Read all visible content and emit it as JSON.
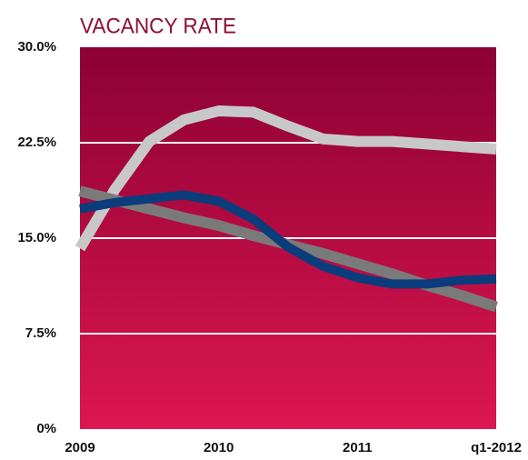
{
  "chart_data": {
    "type": "line",
    "title": "VACANCY RATE",
    "x": [
      2009,
      2009.25,
      2009.5,
      2009.75,
      2010,
      2010.25,
      2010.5,
      2010.75,
      2011,
      2011.25,
      2011.5,
      2011.75,
      2012
    ],
    "series": [
      {
        "color": "#c8c8c8",
        "values": [
          14.2,
          18.8,
          22.6,
          24.3,
          25.0,
          24.9,
          23.8,
          22.8,
          22.6,
          22.6,
          22.4,
          22.2,
          22.0
        ]
      },
      {
        "color": "#7a7a7a",
        "values": [
          18.7,
          18.0,
          17.3,
          16.6,
          16.0,
          15.2,
          14.5,
          13.8,
          13.0,
          12.2,
          11.3,
          10.5,
          9.6
        ]
      },
      {
        "color": "#0b3c7c",
        "values": [
          17.3,
          17.8,
          18.1,
          18.4,
          17.9,
          16.5,
          14.3,
          12.8,
          11.9,
          11.4,
          11.4,
          11.7,
          11.8
        ]
      }
    ],
    "xlim": [
      2009,
      2012
    ],
    "xticks": [
      2009,
      2010,
      2011,
      {
        "value": 2012,
        "label": "q1-2012"
      }
    ],
    "ylim": [
      0,
      30
    ],
    "yticks": [
      {
        "value": 0,
        "label": "0%"
      },
      {
        "value": 7.5,
        "label": "7.5%"
      },
      {
        "value": 15,
        "label": "15.0%"
      },
      {
        "value": 22.5,
        "label": "22.5%"
      },
      {
        "value": 30,
        "label": "30.0%"
      }
    ],
    "grid": true
  }
}
